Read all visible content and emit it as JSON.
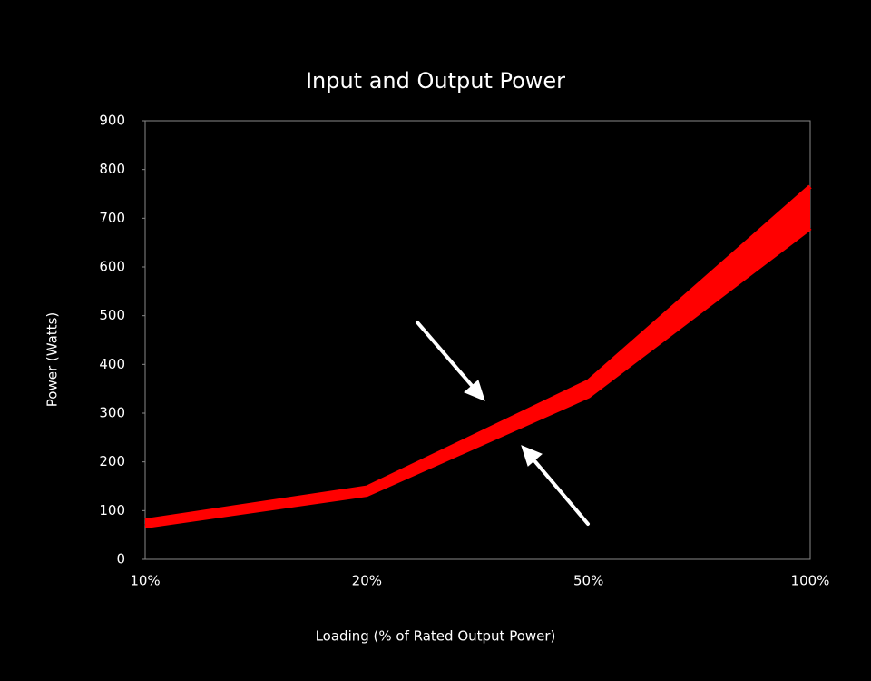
{
  "chart_data": {
    "type": "band",
    "title": "Input and Output Power",
    "x_label": "Loading (% of Rated Output Power)",
    "y_label": "Power (Watts)",
    "categories": [
      "10%",
      "20%",
      "50%",
      "100%"
    ],
    "series": [
      {
        "color": "#ff0000",
        "values": [
          79,
          147,
          365,
          765
        ]
      },
      {
        "color": "#ff0000",
        "values": [
          68,
          133,
          335,
          680
        ]
      }
    ],
    "ylim": [
      0,
      900
    ],
    "yticks": [
      0,
      100,
      200,
      300,
      400,
      500,
      600,
      700,
      800,
      900
    ],
    "grid": false
  }
}
